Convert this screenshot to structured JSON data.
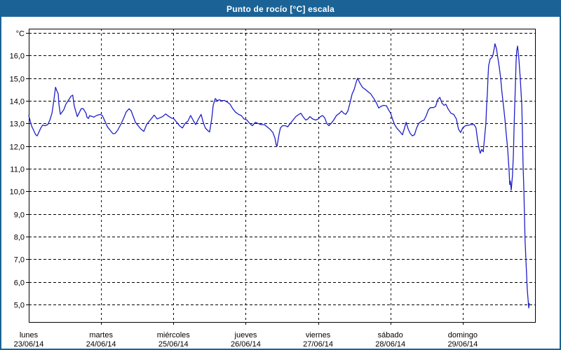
{
  "title_bar": {
    "text": "Punto de rocío [°C] escala"
  },
  "colors": {
    "accent": "#1b6396",
    "title_text": "#ffffff",
    "line": "#1f1fc8",
    "grid": "#000000",
    "background": "#ffffff"
  },
  "chart_data": {
    "type": "line",
    "title": "Punto de rocío [°C] escala",
    "ylabel": "°C",
    "xlabel": "",
    "grid": "dashed",
    "legend_position": "none",
    "ylim": [
      4.3,
      17.2
    ],
    "x_range_hours": [
      0,
      168
    ],
    "y_ticks": [
      {
        "value": 17,
        "label": "°C"
      },
      {
        "value": 16,
        "label": "16,0"
      },
      {
        "value": 15,
        "label": "15,0"
      },
      {
        "value": 14,
        "label": "14,0"
      },
      {
        "value": 13,
        "label": "13,0"
      },
      {
        "value": 12,
        "label": "12,0"
      },
      {
        "value": 11,
        "label": "11,0"
      },
      {
        "value": 10,
        "label": "10,0"
      },
      {
        "value": 9,
        "label": "9,0"
      },
      {
        "value": 8,
        "label": "8,0"
      },
      {
        "value": 7,
        "label": "7,0"
      },
      {
        "value": 6,
        "label": "6,0"
      },
      {
        "value": 5,
        "label": "5,0"
      }
    ],
    "x_days": [
      {
        "name": "lunes",
        "date": "23/06/14",
        "hour": 0
      },
      {
        "name": "martes",
        "date": "24/06/14",
        "hour": 24
      },
      {
        "name": "miércoles",
        "date": "25/06/14",
        "hour": 48
      },
      {
        "name": "jueves",
        "date": "26/06/14",
        "hour": 72
      },
      {
        "name": "viernes",
        "date": "27/06/14",
        "hour": 96
      },
      {
        "name": "sábado",
        "date": "28/06/14",
        "hour": 120
      },
      {
        "name": "domingo",
        "date": "29/06/14",
        "hour": 144
      }
    ],
    "series": [
      {
        "name": "Punto de rocío [°C]",
        "color": "#1f1fc8",
        "points": [
          [
            0,
            13.35
          ],
          [
            0.9,
            12.9
          ],
          [
            2.3,
            12.5
          ],
          [
            2.8,
            12.45
          ],
          [
            4.0,
            12.8
          ],
          [
            4.6,
            12.93
          ],
          [
            5.4,
            12.9
          ],
          [
            6.3,
            12.95
          ],
          [
            7.0,
            13.15
          ],
          [
            7.7,
            13.45
          ],
          [
            8.1,
            13.8
          ],
          [
            8.4,
            14.1
          ],
          [
            8.9,
            14.6
          ],
          [
            9.3,
            14.45
          ],
          [
            9.8,
            14.3
          ],
          [
            10.0,
            13.85
          ],
          [
            10.5,
            13.4
          ],
          [
            11.6,
            13.6
          ],
          [
            12.3,
            13.85
          ],
          [
            13.3,
            14.05
          ],
          [
            14.0,
            14.2
          ],
          [
            14.6,
            14.25
          ],
          [
            15.1,
            13.77
          ],
          [
            16.1,
            13.3
          ],
          [
            17.4,
            13.65
          ],
          [
            18.1,
            13.65
          ],
          [
            19.0,
            13.45
          ],
          [
            19.3,
            13.28
          ],
          [
            19.8,
            13.22
          ],
          [
            20.2,
            13.34
          ],
          [
            21.6,
            13.28
          ],
          [
            22.5,
            13.35
          ],
          [
            23.7,
            13.4
          ],
          [
            24.4,
            13.35
          ],
          [
            25.1,
            13.15
          ],
          [
            26.1,
            12.85
          ],
          [
            27.0,
            12.7
          ],
          [
            27.9,
            12.55
          ],
          [
            28.6,
            12.55
          ],
          [
            29.5,
            12.7
          ],
          [
            30.5,
            12.95
          ],
          [
            31.4,
            13.2
          ],
          [
            32.3,
            13.5
          ],
          [
            33.3,
            13.65
          ],
          [
            34.0,
            13.55
          ],
          [
            34.7,
            13.3
          ],
          [
            35.4,
            13.05
          ],
          [
            36.3,
            12.9
          ],
          [
            37.2,
            12.75
          ],
          [
            38.2,
            12.65
          ],
          [
            39.1,
            12.95
          ],
          [
            40.0,
            13.1
          ],
          [
            40.9,
            13.25
          ],
          [
            41.6,
            13.37
          ],
          [
            42.6,
            13.2
          ],
          [
            43.5,
            13.25
          ],
          [
            44.4,
            13.3
          ],
          [
            45.4,
            13.42
          ],
          [
            46.3,
            13.33
          ],
          [
            47.2,
            13.25
          ],
          [
            48.2,
            13.2
          ],
          [
            49.1,
            13.05
          ],
          [
            50.0,
            12.9
          ],
          [
            51.0,
            12.8
          ],
          [
            51.9,
            13.0
          ],
          [
            52.8,
            13.1
          ],
          [
            53.7,
            13.35
          ],
          [
            54.7,
            13.1
          ],
          [
            55.4,
            12.95
          ],
          [
            56.3,
            13.2
          ],
          [
            57.2,
            13.4
          ],
          [
            57.9,
            13.05
          ],
          [
            58.6,
            12.8
          ],
          [
            59.3,
            12.7
          ],
          [
            60.0,
            12.62
          ],
          [
            60.7,
            13.2
          ],
          [
            61.2,
            13.8
          ],
          [
            61.9,
            14.1
          ],
          [
            62.6,
            14.0
          ],
          [
            63.3,
            14.05
          ],
          [
            64.0,
            14.0
          ],
          [
            64.9,
            14.02
          ],
          [
            65.8,
            13.95
          ],
          [
            66.8,
            13.85
          ],
          [
            67.7,
            13.65
          ],
          [
            68.6,
            13.5
          ],
          [
            69.6,
            13.4
          ],
          [
            70.5,
            13.35
          ],
          [
            71.4,
            13.2
          ],
          [
            72.4,
            13.15
          ],
          [
            73.3,
            13.0
          ],
          [
            74.2,
            12.9
          ],
          [
            75.2,
            13.05
          ],
          [
            76.1,
            13.0
          ],
          [
            77.0,
            12.95
          ],
          [
            78.2,
            12.95
          ],
          [
            79.1,
            12.85
          ],
          [
            80.0,
            12.75
          ],
          [
            81.0,
            12.6
          ],
          [
            81.7,
            12.35
          ],
          [
            82.1,
            12.05
          ],
          [
            82.4,
            12.0
          ],
          [
            83.1,
            12.55
          ],
          [
            83.5,
            12.8
          ],
          [
            84.2,
            12.9
          ],
          [
            85.2,
            12.9
          ],
          [
            85.9,
            12.85
          ],
          [
            86.8,
            13.0
          ],
          [
            87.7,
            13.15
          ],
          [
            88.6,
            13.3
          ],
          [
            89.6,
            13.4
          ],
          [
            90.3,
            13.45
          ],
          [
            91.0,
            13.3
          ],
          [
            91.9,
            13.15
          ],
          [
            92.6,
            13.2
          ],
          [
            93.3,
            13.3
          ],
          [
            94.2,
            13.2
          ],
          [
            95.2,
            13.15
          ],
          [
            96.1,
            13.2
          ],
          [
            96.8,
            13.3
          ],
          [
            97.5,
            13.35
          ],
          [
            98.2,
            13.25
          ],
          [
            98.9,
            13.0
          ],
          [
            99.6,
            12.9
          ],
          [
            100.3,
            13.0
          ],
          [
            101.2,
            13.15
          ],
          [
            102.1,
            13.35
          ],
          [
            103.1,
            13.45
          ],
          [
            103.8,
            13.55
          ],
          [
            104.5,
            13.45
          ],
          [
            105.2,
            13.4
          ],
          [
            105.9,
            13.55
          ],
          [
            106.6,
            13.9
          ],
          [
            107.3,
            14.3
          ],
          [
            108.0,
            14.5
          ],
          [
            108.7,
            14.85
          ],
          [
            109.1,
            15.0
          ],
          [
            109.8,
            14.8
          ],
          [
            110.7,
            14.6
          ],
          [
            111.7,
            14.5
          ],
          [
            112.6,
            14.4
          ],
          [
            113.5,
            14.3
          ],
          [
            114.5,
            14.1
          ],
          [
            115.4,
            13.9
          ],
          [
            116.1,
            13.68
          ],
          [
            116.8,
            13.75
          ],
          [
            117.7,
            13.8
          ],
          [
            118.7,
            13.78
          ],
          [
            119.4,
            13.6
          ],
          [
            120.1,
            13.45
          ],
          [
            120.7,
            13.2
          ],
          [
            121.4,
            12.95
          ],
          [
            122.1,
            12.8
          ],
          [
            123.1,
            12.65
          ],
          [
            124.0,
            12.5
          ],
          [
            124.7,
            12.8
          ],
          [
            125.2,
            13.05
          ],
          [
            125.9,
            12.75
          ],
          [
            126.6,
            12.55
          ],
          [
            127.3,
            12.45
          ],
          [
            128.0,
            12.5
          ],
          [
            128.7,
            12.8
          ],
          [
            129.4,
            13.0
          ],
          [
            130.3,
            13.1
          ],
          [
            131.2,
            13.15
          ],
          [
            131.9,
            13.35
          ],
          [
            132.6,
            13.6
          ],
          [
            133.3,
            13.7
          ],
          [
            134.3,
            13.7
          ],
          [
            135.0,
            13.75
          ],
          [
            135.7,
            14.05
          ],
          [
            136.4,
            14.15
          ],
          [
            137.1,
            13.9
          ],
          [
            137.8,
            13.8
          ],
          [
            138.4,
            13.85
          ],
          [
            139.1,
            13.65
          ],
          [
            140.1,
            13.45
          ],
          [
            141.0,
            13.4
          ],
          [
            141.9,
            13.2
          ],
          [
            142.6,
            12.75
          ],
          [
            143.3,
            12.6
          ],
          [
            144.0,
            12.8
          ],
          [
            144.9,
            12.9
          ],
          [
            145.9,
            12.92
          ],
          [
            146.8,
            12.95
          ],
          [
            147.8,
            12.95
          ],
          [
            148.4,
            12.8
          ],
          [
            148.9,
            12.3
          ],
          [
            149.4,
            11.9
          ],
          [
            149.8,
            11.68
          ],
          [
            150.3,
            11.85
          ],
          [
            150.8,
            11.75
          ],
          [
            151.2,
            12.3
          ],
          [
            151.7,
            13.0
          ],
          [
            151.9,
            13.7
          ],
          [
            152.2,
            14.4
          ],
          [
            152.4,
            15.1
          ],
          [
            152.6,
            15.55
          ],
          [
            153.1,
            15.85
          ],
          [
            153.6,
            15.9
          ],
          [
            154.0,
            16.0
          ],
          [
            154.5,
            16.35
          ],
          [
            154.7,
            16.52
          ],
          [
            155.2,
            16.3
          ],
          [
            155.6,
            15.95
          ],
          [
            156.1,
            15.5
          ],
          [
            156.6,
            15.0
          ],
          [
            157.0,
            14.4
          ],
          [
            157.5,
            13.8
          ],
          [
            158.0,
            13.2
          ],
          [
            158.4,
            12.6
          ],
          [
            158.9,
            11.9
          ],
          [
            159.4,
            10.9
          ],
          [
            159.6,
            10.3
          ],
          [
            159.8,
            10.45
          ],
          [
            160.1,
            10.05
          ],
          [
            160.5,
            10.7
          ],
          [
            160.8,
            11.6
          ],
          [
            161.0,
            12.6
          ],
          [
            161.2,
            13.6
          ],
          [
            161.5,
            14.8
          ],
          [
            161.7,
            15.7
          ],
          [
            161.9,
            16.2
          ],
          [
            162.2,
            16.42
          ],
          [
            162.6,
            15.9
          ],
          [
            163.1,
            15.0
          ],
          [
            163.6,
            13.8
          ],
          [
            163.8,
            12.6
          ],
          [
            164.0,
            11.3
          ],
          [
            164.3,
            10.0
          ],
          [
            164.5,
            8.8
          ],
          [
            164.7,
            7.8
          ],
          [
            165.0,
            6.9
          ],
          [
            165.2,
            6.3
          ],
          [
            165.4,
            5.7
          ],
          [
            165.7,
            5.2
          ],
          [
            165.9,
            4.85
          ],
          [
            166.1,
            5.05
          ]
        ]
      }
    ]
  }
}
